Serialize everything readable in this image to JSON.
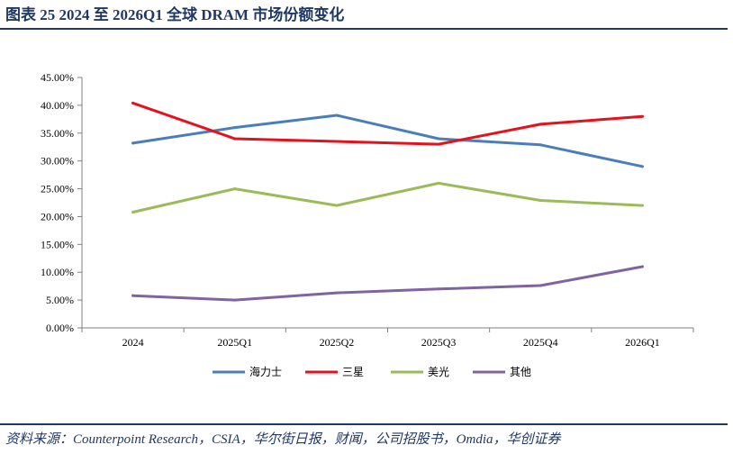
{
  "header": {
    "title": "图表 25   2024 至 2026Q1 全球 DRAM 市场份额变化"
  },
  "footer": {
    "source": "资料来源：Counterpoint Research，CSIA，华尔街日报，财闻，公司招股书，Omdia，华创证券"
  },
  "chart_data": {
    "type": "line",
    "categories": [
      "2024",
      "2025Q1",
      "2025Q2",
      "2025Q3",
      "2025Q4",
      "2026Q1"
    ],
    "y_ticks": [
      "0.00%",
      "5.00%",
      "10.00%",
      "15.00%",
      "20.00%",
      "25.00%",
      "30.00%",
      "35.00%",
      "40.00%",
      "45.00%"
    ],
    "ylim": [
      0,
      45
    ],
    "grid": false,
    "legend_position": "bottom",
    "series": [
      {
        "name": "海力士",
        "color": "#4a7ebb",
        "values": [
          33.2,
          36.0,
          38.2,
          34.0,
          32.9,
          29.0
        ]
      },
      {
        "name": "三星",
        "color": "#e3121d",
        "values": [
          40.4,
          34.0,
          33.5,
          33.0,
          36.6,
          38.0
        ]
      },
      {
        "name": "美光",
        "color": "#9bbb59",
        "values": [
          20.8,
          25.0,
          22.0,
          26.0,
          22.9,
          22.0
        ]
      },
      {
        "name": "其他",
        "color": "#8064a2",
        "values": [
          5.8,
          5.0,
          6.3,
          7.0,
          7.6,
          11.0
        ]
      }
    ]
  }
}
